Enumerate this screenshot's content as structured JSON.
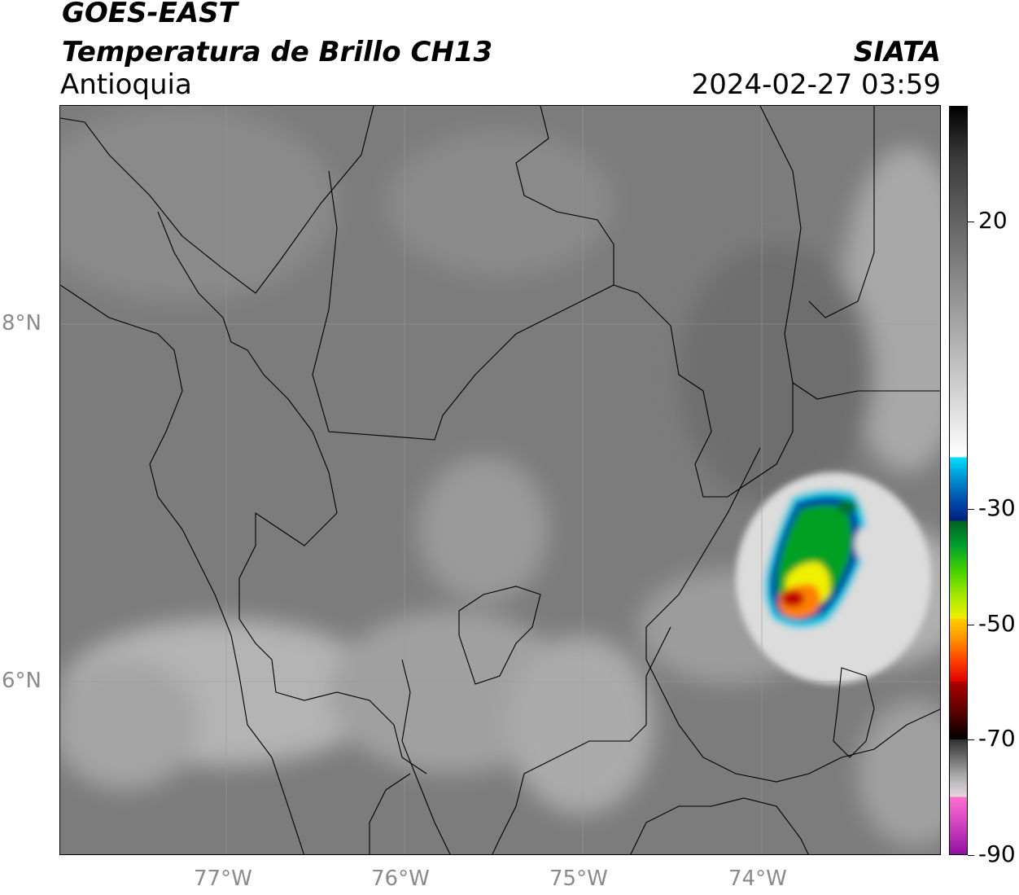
{
  "header": {
    "satellite": "GOES-EAST",
    "product": "Temperatura de Brillo CH13",
    "region": "Antioquia",
    "organization": "SIATA",
    "datetime": "2024-02-27 03:59"
  },
  "map": {
    "latitude_labels": [
      "8°N",
      "6°N"
    ],
    "longitude_labels": [
      "77°W",
      "76°W",
      "75°W",
      "74°W"
    ],
    "colors": {
      "cloud_free": "#7f7f7f",
      "warm_cloud": "#a8a8a8",
      "cold_edge": "#e6e6e6",
      "cyan": "#00c8e0",
      "blue": "#0040a0",
      "green": "#00b000",
      "yellow": "#f0f000",
      "orange": "#ff8000",
      "red": "#c00000"
    }
  },
  "colorbar": {
    "ticks": [
      "20",
      "-30",
      "-50",
      "-70",
      "-90"
    ],
    "tick_values": [
      20,
      -30,
      -50,
      -70,
      -90
    ],
    "range": [
      -90,
      40
    ],
    "segments": [
      {
        "from": 40,
        "to": -21,
        "colors": [
          "#000000",
          "#3a3a3a",
          "#5a5a5a",
          "#7a7a7a",
          "#9a9a9a",
          "#bbbbbb",
          "#dddddd",
          "#ffffff"
        ]
      },
      {
        "from": -21,
        "to": -32,
        "colors": [
          "#00e0ff",
          "#0090d0",
          "#0050b0",
          "#002080"
        ]
      },
      {
        "from": -32,
        "to": -49,
        "colors": [
          "#006020",
          "#00a030",
          "#40d000",
          "#a0e800",
          "#f0f000"
        ]
      },
      {
        "from": -49,
        "to": -60,
        "colors": [
          "#ffd000",
          "#ff9000",
          "#ff4000",
          "#e00000"
        ]
      },
      {
        "from": -60,
        "to": -70,
        "colors": [
          "#b00000",
          "#600000",
          "#000000"
        ]
      },
      {
        "from": -70,
        "to": -80,
        "colors": [
          "#303030",
          "#707070",
          "#b0b0b0",
          "#e8d8e0"
        ]
      },
      {
        "from": -80,
        "to": -90,
        "colors": [
          "#ff70d0",
          "#d040c0",
          "#9010a0"
        ]
      }
    ]
  }
}
